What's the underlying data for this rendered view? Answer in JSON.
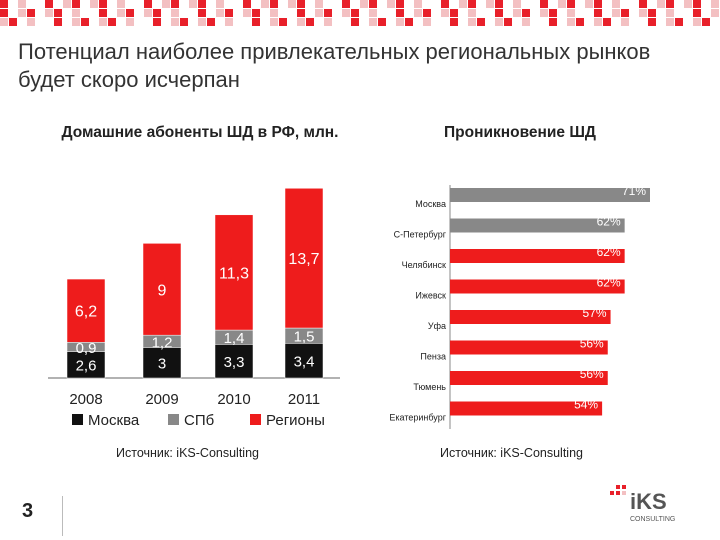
{
  "slide": {
    "title": "Потенциал наиболее привлекательных региональных рынков будет скоро исчерпан",
    "page_number": "3",
    "logo_text": "iKS",
    "logo_sub": "CONSULTING"
  },
  "left_chart": {
    "subtitle": "Домашние абоненты ШД в РФ, млн.",
    "source": "Источник: iKS-Consulting"
  },
  "right_chart": {
    "subtitle": "Проникновение ШД",
    "source": "Источник: iKS-Consulting"
  },
  "colors": {
    "moscow": "#111111",
    "spb": "#888888",
    "regions": "#ee1c1c",
    "checker_red": "#e8202a",
    "checker_light": "#f3c0c2"
  },
  "chart_data": [
    {
      "type": "bar",
      "stacked": true,
      "categories": [
        "2008",
        "2009",
        "2010",
        "2011"
      ],
      "series": [
        {
          "name": "Москва",
          "values": [
            2.6,
            3,
            3.3,
            3.4
          ],
          "labels": [
            "2,6",
            "3",
            "3,3",
            "3,4"
          ]
        },
        {
          "name": "СПб",
          "values": [
            0.9,
            1.2,
            1.4,
            1.5
          ],
          "labels": [
            "0,9",
            "1,2",
            "1,4",
            "1,5"
          ]
        },
        {
          "name": "Регионы",
          "values": [
            6.2,
            9,
            11.3,
            13.7
          ],
          "labels": [
            "6,2",
            "9",
            "11,3",
            "13,7"
          ]
        }
      ],
      "legend_position": "bottom"
    },
    {
      "type": "bar",
      "orientation": "horizontal",
      "categories": [
        "Москва",
        "С-Петербург",
        "Челябинск",
        "Ижевск",
        "Уфа",
        "Пенза",
        "Тюмень",
        "Екатеринбург"
      ],
      "values": [
        71,
        62,
        62,
        62,
        57,
        56,
        56,
        54
      ],
      "labels": [
        "71%",
        "62%",
        "62%",
        "62%",
        "57%",
        "56%",
        "56%",
        "54%"
      ],
      "bar_colors": [
        "#888888",
        "#888888",
        "#ee1c1c",
        "#ee1c1c",
        "#ee1c1c",
        "#ee1c1c",
        "#ee1c1c",
        "#ee1c1c"
      ],
      "xlim": [
        0,
        71
      ]
    }
  ]
}
